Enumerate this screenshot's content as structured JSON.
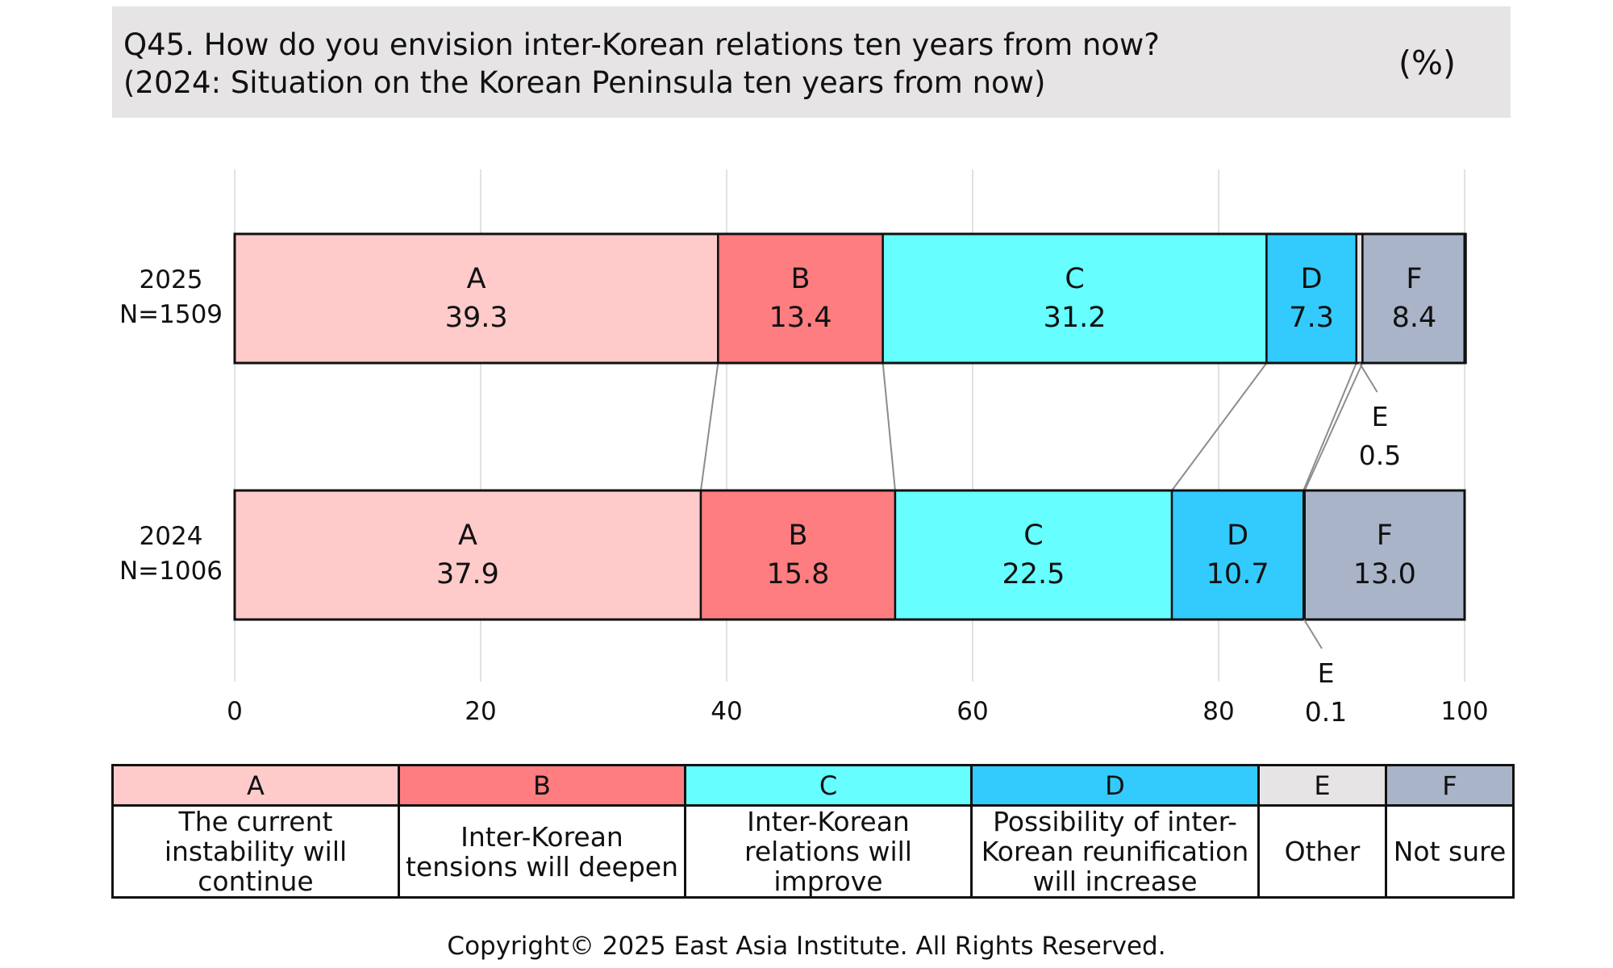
{
  "header": {
    "title": "Q45. How do you envision inter-Korean relations ten years from now?\n(2024: Situation on the Korean Peninsula ten years from now)",
    "unit": "(%)"
  },
  "chart_data": {
    "type": "bar",
    "orientation": "horizontal",
    "stacked": true,
    "xlim": [
      0,
      100
    ],
    "xticks": [
      0,
      20,
      40,
      60,
      80,
      100
    ],
    "grid": true,
    "categories": [
      {
        "label": "2025",
        "n": "N=1509"
      },
      {
        "label": "2024",
        "n": "N=1006"
      }
    ],
    "series": [
      {
        "name": "A",
        "color": "#fecaca",
        "values": [
          39.3,
          37.9
        ]
      },
      {
        "name": "B",
        "color": "#fd7d80",
        "values": [
          13.4,
          15.8
        ]
      },
      {
        "name": "C",
        "color": "#66fefe",
        "values": [
          31.2,
          22.5
        ]
      },
      {
        "name": "D",
        "color": "#33cbfd",
        "values": [
          7.3,
          10.7
        ]
      },
      {
        "name": "E",
        "color": "#e6e4e5",
        "values": [
          0.5,
          0.1
        ]
      },
      {
        "name": "F",
        "color": "#a9b4c8",
        "values": [
          8.4,
          13.0
        ]
      }
    ],
    "display_values": [
      [
        "39.3",
        "13.4",
        "31.2",
        "7.3",
        "0.5",
        "8.4"
      ],
      [
        "37.9",
        "15.8",
        "22.5",
        "10.7",
        "0.1",
        "13.0"
      ]
    ]
  },
  "legend": [
    {
      "code": "A",
      "label": "The current instability will continue"
    },
    {
      "code": "B",
      "label": "Inter-Korean tensions will deepen"
    },
    {
      "code": "C",
      "label": "Inter-Korean relations will improve"
    },
    {
      "code": "D",
      "label": "Possibility of inter-Korean reunification will increase"
    },
    {
      "code": "E",
      "label": "Other"
    },
    {
      "code": "F",
      "label": "Not sure"
    }
  ],
  "copyright": "Copyright© 2025 East Asia Institute. All Rights Reserved."
}
